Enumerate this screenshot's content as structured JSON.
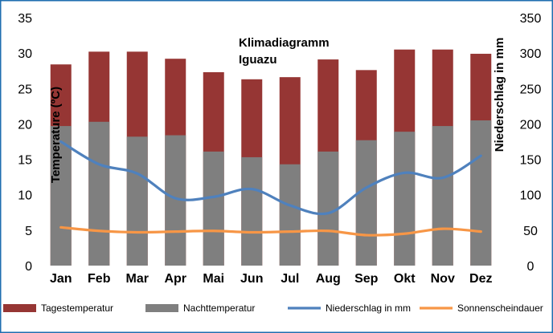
{
  "chart_data": {
    "type": "bar",
    "title": "Klimadiagramm",
    "subtitle": "Iguazu",
    "ylabel_left": "Temperature (ºC)",
    "ylabel_right": "Niederschlag in mm",
    "ylim_left": [
      0,
      35
    ],
    "yticks_left": [
      0,
      5,
      10,
      15,
      20,
      25,
      30,
      35
    ],
    "ylim_right": [
      0,
      350
    ],
    "yticks_right": [
      0,
      50,
      100,
      150,
      200,
      250,
      300,
      350
    ],
    "grid": false,
    "legend_position": "bottom",
    "categories": [
      "Jan",
      "Feb",
      "Mar",
      "Apr",
      "Mai",
      "Jun",
      "Jul",
      "Aug",
      "Sep",
      "Okt",
      "Nov",
      "Dez"
    ],
    "series": [
      {
        "name": "Tagestemperatur",
        "kind": "bar",
        "axis": "left",
        "color": "#963634",
        "values": [
          28.4,
          30.2,
          30.2,
          29.2,
          27.3,
          26.3,
          26.6,
          29.1,
          27.6,
          30.5,
          30.5,
          29.9
        ]
      },
      {
        "name": "Nachttemperatur",
        "kind": "bar",
        "axis": "left",
        "color": "#7f7f7f",
        "values": [
          19.7,
          20.3,
          18.2,
          18.4,
          16.1,
          15.3,
          14.3,
          16.1,
          17.7,
          18.9,
          19.7,
          20.5
        ]
      },
      {
        "name": "Niederschlag in mm",
        "kind": "line",
        "axis": "right",
        "color": "#4f81bd",
        "values": [
          175,
          143,
          130,
          95,
          97,
          108,
          85,
          74,
          110,
          131,
          124,
          155
        ]
      },
      {
        "name": "Sonnenscheindauer",
        "kind": "line",
        "axis": "left",
        "color": "#f79646",
        "values": [
          5.4,
          4.9,
          4.7,
          4.8,
          4.9,
          4.7,
          4.8,
          4.9,
          4.3,
          4.5,
          5.2,
          4.8
        ]
      }
    ]
  }
}
